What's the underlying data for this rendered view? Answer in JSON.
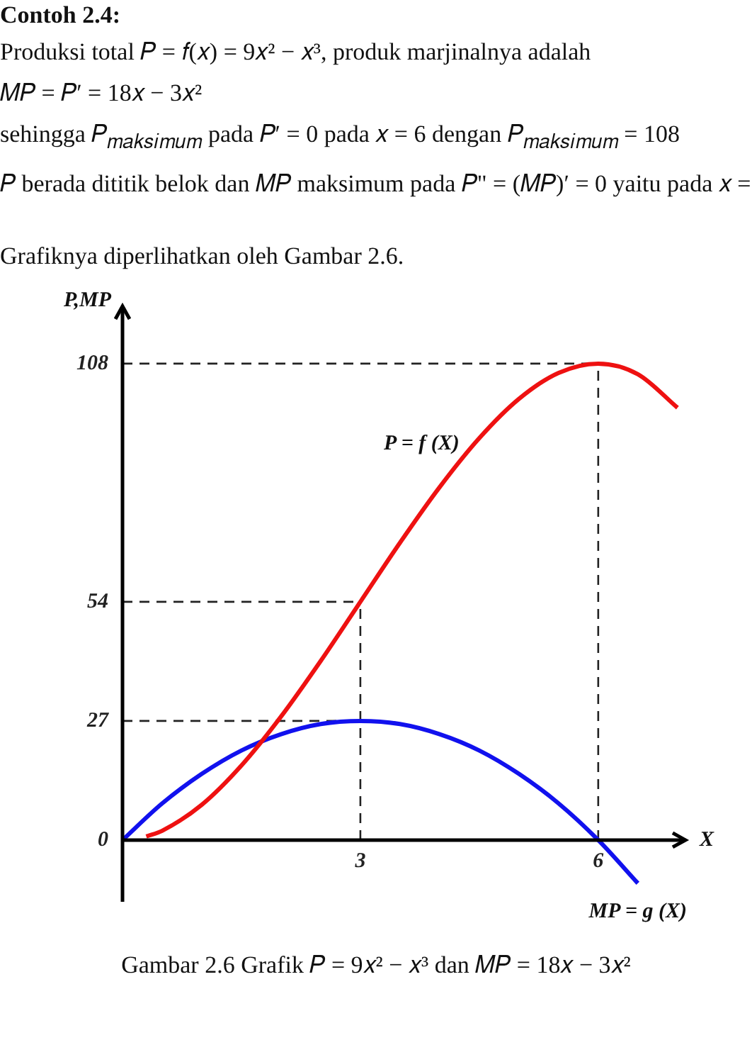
{
  "chart_data": {
    "type": "line",
    "title": "Contoh 2.4:",
    "subtitle": "Grafiknya diperlihatkan oleh Gambar 2.6.",
    "annotations": [
      "Produksi total 𝑃 = 𝑓(𝑥) = 9𝑥² − 𝑥³, produk marjinalnya adalah",
      "𝑀𝑃 = 𝑃′ = 18𝑥 − 3𝑥²",
      "sehingga 𝑃$_{𝑚𝑎𝑘𝑠𝑖𝑚𝑢𝑚}$ pada 𝑃′ = 0 pada 𝑥 = 6 dengan 𝑃$_{𝑚𝑎𝑘𝑠𝑖𝑚𝑢𝑚}$ = 108",
      "𝑃 berada dititik belok dan 𝑀𝑃 maksimum pada 𝑃\" = (𝑀𝑃)′ = 0 yaitu pada 𝑥 =",
      "Gambar 2.6 Grafik 𝑃 = 9𝑥² − 𝑥³ dan 𝑀𝑃 = 18𝑥 − 3𝑥²"
    ],
    "xlabel": "X",
    "ylabel": "P,MP",
    "series": [
      {
        "name": "P = f (X)",
        "color": "#ee1111",
        "x": [
          0.3,
          0.5,
          1,
          1.5,
          2,
          2.5,
          3,
          3.5,
          4,
          4.5,
          5,
          5.5,
          6,
          6.5,
          7
        ],
        "values": [
          0.8,
          2.1,
          8,
          16.9,
          28,
          40.6,
          54,
          67.4,
          80,
          91.1,
          100,
          105.9,
          108,
          105.6,
          98
        ]
      },
      {
        "name": "MP = g (X)",
        "color": "#1111ee",
        "x": [
          0,
          0.5,
          1,
          1.5,
          2,
          2.5,
          3,
          3.5,
          4,
          4.5,
          5,
          5.5,
          6,
          6.5
        ],
        "values": [
          0,
          8.3,
          15,
          20.3,
          24,
          26.3,
          27,
          26.3,
          24,
          20.3,
          15,
          8.3,
          0,
          -9.8
        ]
      }
    ],
    "xlim": [
      0,
      7.1
    ],
    "ylim": [
      -14,
      121
    ],
    "xticks": [
      3,
      6
    ],
    "yticks": [
      0,
      27,
      54,
      108
    ],
    "ref_lines": [
      {
        "axis": "y",
        "value": 108,
        "line_style": "dashed"
      },
      {
        "axis": "y",
        "value": 54,
        "line_style": "dashed"
      },
      {
        "axis": "y",
        "value": 27,
        "line_style": "dashed"
      },
      {
        "axis": "x",
        "value": 3,
        "line_style": "dashed"
      },
      {
        "axis": "x",
        "value": 6,
        "line_style": "dashed"
      }
    ],
    "grid": false,
    "legend": false,
    "marker": "none",
    "line_style": "solid"
  }
}
